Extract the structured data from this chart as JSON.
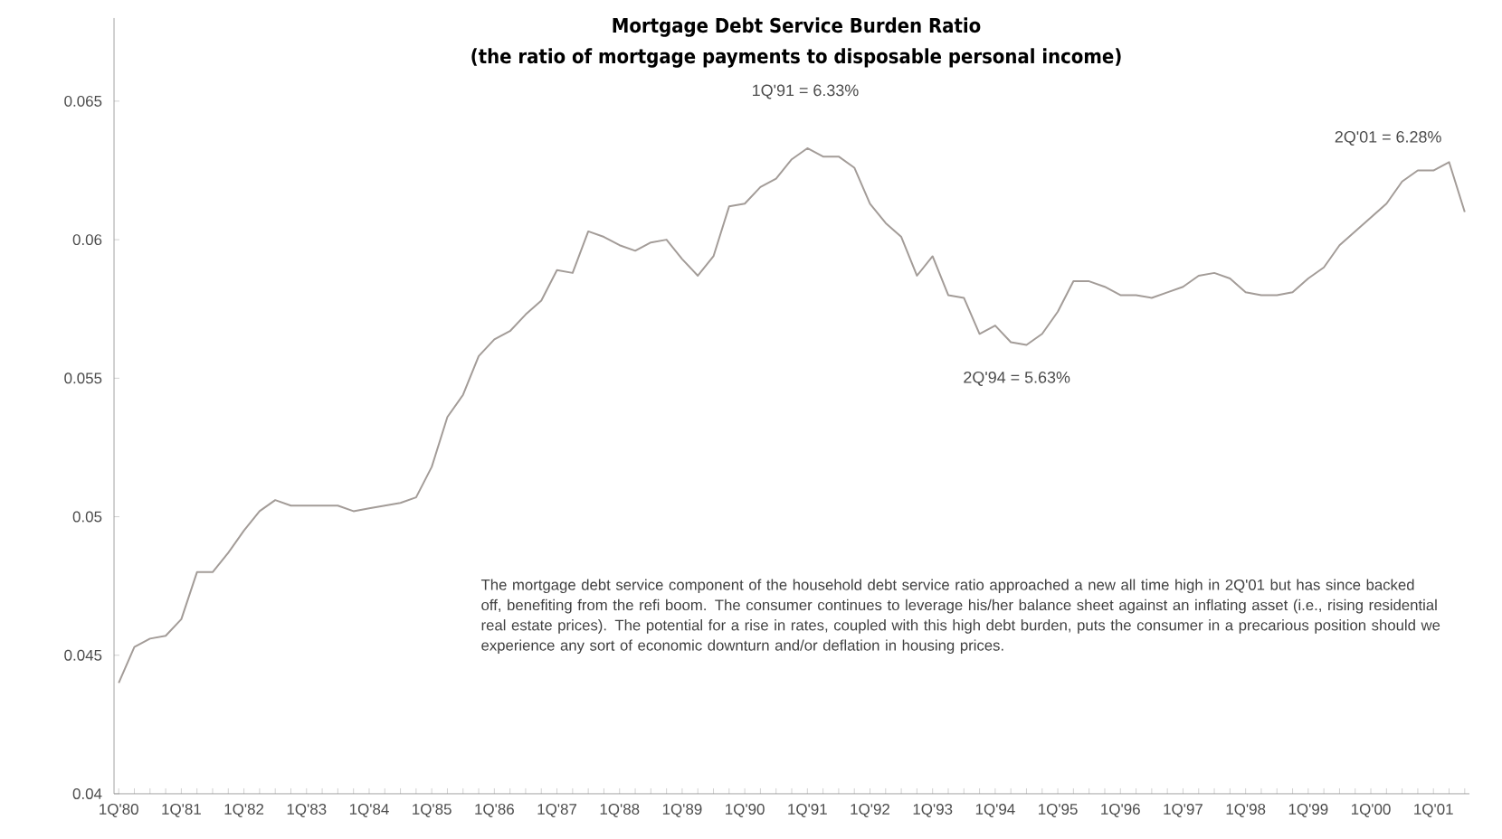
{
  "chart_data": {
    "type": "line",
    "title": "Mortgage Debt Service Burden Ratio",
    "subtitle": "(the ratio of mortgage payments to disposable personal income)",
    "categories": [
      "1Q'80",
      null,
      null,
      null,
      "1Q'81",
      null,
      null,
      null,
      "1Q'82",
      null,
      null,
      null,
      "1Q'83",
      null,
      null,
      null,
      "1Q'84",
      null,
      null,
      null,
      "1Q'85",
      null,
      null,
      null,
      "1Q'86",
      null,
      null,
      null,
      "1Q'87",
      null,
      null,
      null,
      "1Q'88",
      null,
      null,
      null,
      "1Q'89",
      null,
      null,
      null,
      "1Q'90",
      null,
      null,
      null,
      "1Q'91",
      null,
      null,
      null,
      "1Q'92",
      null,
      null,
      null,
      "1Q'93",
      null,
      null,
      null,
      "1Q'94",
      null,
      null,
      null,
      "1Q'95",
      null,
      null,
      null,
      "1Q'96",
      null,
      null,
      null,
      "1Q'97",
      null,
      null,
      null,
      "1Q'98",
      null,
      null,
      null,
      "1Q'99",
      null,
      null,
      null,
      "1Q'00",
      null,
      null,
      null,
      "1Q'01",
      null,
      null
    ],
    "series": [
      {
        "color": "#a39c98",
        "values": [
          0.044,
          0.0453,
          0.0456,
          0.0457,
          0.0463,
          0.048,
          0.048,
          0.0487,
          0.0495,
          0.0502,
          0.0506,
          0.0504,
          0.0504,
          0.0504,
          0.0504,
          0.0502,
          0.0503,
          0.0504,
          0.0505,
          0.0507,
          0.0518,
          0.0536,
          0.0544,
          0.0558,
          0.0564,
          0.0567,
          0.0573,
          0.0578,
          0.0589,
          0.0588,
          0.0603,
          0.0601,
          0.0598,
          0.0596,
          0.0599,
          0.06,
          0.0593,
          0.0587,
          0.0594,
          0.0612,
          0.0613,
          0.0619,
          0.0622,
          0.0629,
          0.0633,
          0.063,
          0.063,
          0.0626,
          0.0613,
          0.0606,
          0.0601,
          0.0587,
          0.0594,
          0.058,
          0.0579,
          0.0566,
          0.0569,
          0.0563,
          0.0562,
          0.0566,
          0.0574,
          0.0585,
          0.0585,
          0.0583,
          0.058,
          0.058,
          0.0579,
          0.0581,
          0.0583,
          0.0587,
          0.0588,
          0.0586,
          0.0581,
          0.058,
          0.058,
          0.0581,
          0.0586,
          0.059,
          0.0598,
          0.0603,
          0.0608,
          0.0613,
          0.0621,
          0.0625,
          0.0625,
          0.0628,
          0.061
        ]
      }
    ],
    "ylim": [
      0.04,
      0.068
    ],
    "yticks": [
      0.04,
      0.045,
      0.05,
      0.055,
      0.06,
      0.065
    ],
    "grid": false,
    "marker": "none",
    "line_style": "solid",
    "annotations": [
      "1Q'91 = 6.33%",
      "2Q'94 = 5.63%",
      "2Q'01 = 6.28%",
      "The mortgage debt service component of the household debt service ratio approached a new all time high in 2Q'01 but has since backed off, benefiting from the refi boom.  The consumer continues to leverage his/her balance sheet against an inflating asset (i.e., rising residential real estate prices).  The potential for a rise in rates, coupled with this high debt burden, puts the consumer in a precarious position should we experience any sort of economic downturn and/or deflation in housing prices."
    ]
  }
}
